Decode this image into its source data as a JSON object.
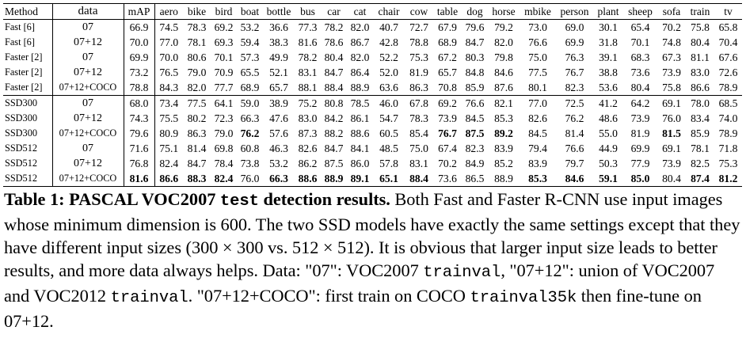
{
  "table": {
    "headers": [
      "Method",
      "data",
      "mAP",
      "aero",
      "bike",
      "bird",
      "boat",
      "bottle",
      "bus",
      "car",
      "cat",
      "chair",
      "cow",
      "table",
      "dog",
      "horse",
      "mbike",
      "person",
      "plant",
      "sheep",
      "sofa",
      "train",
      "tv"
    ],
    "rows": [
      {
        "method": "Fast [6]",
        "data": "07",
        "values": [
          "66.9",
          "74.5",
          "78.3",
          "69.2",
          "53.2",
          "36.6",
          "77.3",
          "78.2",
          "82.0",
          "40.7",
          "72.7",
          "67.9",
          "79.6",
          "79.2",
          "73.0",
          "69.0",
          "30.1",
          "65.4",
          "70.2",
          "75.8",
          "65.8"
        ],
        "bold": []
      },
      {
        "method": "Fast [6]",
        "data": "07+12",
        "values": [
          "70.0",
          "77.0",
          "78.1",
          "69.3",
          "59.4",
          "38.3",
          "81.6",
          "78.6",
          "86.7",
          "42.8",
          "78.8",
          "68.9",
          "84.7",
          "82.0",
          "76.6",
          "69.9",
          "31.8",
          "70.1",
          "74.8",
          "80.4",
          "70.4"
        ],
        "bold": []
      },
      {
        "method": "Faster [2]",
        "data": "07",
        "values": [
          "69.9",
          "70.0",
          "80.6",
          "70.1",
          "57.3",
          "49.9",
          "78.2",
          "80.4",
          "82.0",
          "52.2",
          "75.3",
          "67.2",
          "80.3",
          "79.8",
          "75.0",
          "76.3",
          "39.1",
          "68.3",
          "67.3",
          "81.1",
          "67.6"
        ],
        "bold": []
      },
      {
        "method": "Faster [2]",
        "data": "07+12",
        "values": [
          "73.2",
          "76.5",
          "79.0",
          "70.9",
          "65.5",
          "52.1",
          "83.1",
          "84.7",
          "86.4",
          "52.0",
          "81.9",
          "65.7",
          "84.8",
          "84.6",
          "77.5",
          "76.7",
          "38.8",
          "73.6",
          "73.9",
          "83.0",
          "72.6"
        ],
        "bold": []
      },
      {
        "method": "Faster [2]",
        "data": "07+12+COCO",
        "values": [
          "78.8",
          "84.3",
          "82.0",
          "77.7",
          "68.9",
          "65.7",
          "88.1",
          "88.4",
          "88.9",
          "63.6",
          "86.3",
          "70.8",
          "85.9",
          "87.6",
          "80.1",
          "82.3",
          "53.6",
          "80.4",
          "75.8",
          "86.6",
          "78.9"
        ],
        "bold": []
      },
      {
        "method": "SSD300",
        "data": "07",
        "values": [
          "68.0",
          "73.4",
          "77.5",
          "64.1",
          "59.0",
          "38.9",
          "75.2",
          "80.8",
          "78.5",
          "46.0",
          "67.8",
          "69.2",
          "76.6",
          "82.1",
          "77.0",
          "72.5",
          "41.2",
          "64.2",
          "69.1",
          "78.0",
          "68.5"
        ],
        "bold": []
      },
      {
        "method": "SSD300",
        "data": "07+12",
        "values": [
          "74.3",
          "75.5",
          "80.2",
          "72.3",
          "66.3",
          "47.6",
          "83.0",
          "84.2",
          "86.1",
          "54.7",
          "78.3",
          "73.9",
          "84.5",
          "85.3",
          "82.6",
          "76.2",
          "48.6",
          "73.9",
          "76.0",
          "83.4",
          "74.0"
        ],
        "bold": []
      },
      {
        "method": "SSD300",
        "data": "07+12+COCO",
        "values": [
          "79.6",
          "80.9",
          "86.3",
          "79.0",
          "76.2",
          "57.6",
          "87.3",
          "88.2",
          "88.6",
          "60.5",
          "85.4",
          "76.7",
          "87.5",
          "89.2",
          "84.5",
          "81.4",
          "55.0",
          "81.9",
          "81.5",
          "85.9",
          "78.9"
        ],
        "bold": [
          4,
          11,
          12,
          13,
          18
        ]
      },
      {
        "method": "SSD512",
        "data": "07",
        "values": [
          "71.6",
          "75.1",
          "81.4",
          "69.8",
          "60.8",
          "46.3",
          "82.6",
          "84.7",
          "84.1",
          "48.5",
          "75.0",
          "67.4",
          "82.3",
          "83.9",
          "79.4",
          "76.6",
          "44.9",
          "69.9",
          "69.1",
          "78.1",
          "71.8"
        ],
        "bold": []
      },
      {
        "method": "SSD512",
        "data": "07+12",
        "values": [
          "76.8",
          "82.4",
          "84.7",
          "78.4",
          "73.8",
          "53.2",
          "86.2",
          "87.5",
          "86.0",
          "57.8",
          "83.1",
          "70.2",
          "84.9",
          "85.2",
          "83.9",
          "79.7",
          "50.3",
          "77.9",
          "73.9",
          "82.5",
          "75.3"
        ],
        "bold": []
      },
      {
        "method": "SSD512",
        "data": "07+12+COCO",
        "values": [
          "81.6",
          "86.6",
          "88.3",
          "82.4",
          "76.0",
          "66.3",
          "88.6",
          "88.9",
          "89.1",
          "65.1",
          "88.4",
          "73.6",
          "86.5",
          "88.9",
          "85.3",
          "84.6",
          "59.1",
          "85.0",
          "80.4",
          "87.4",
          "81.2"
        ],
        "bold": [
          0,
          1,
          2,
          3,
          5,
          6,
          7,
          8,
          9,
          10,
          14,
          15,
          16,
          17,
          19,
          20
        ]
      }
    ]
  },
  "caption": {
    "label": "Table 1:",
    "title_pre": "PASCAL VOC2007 ",
    "title_code": "test",
    "title_post": " detection results.",
    "t1": " Both Fast and Faster R-CNN use input images whose minimum dimension is 600. The two SSD models have exactly the same settings except that they have different input sizes (300 × 300 vs. 512 × 512). It is obvious that larger input size leads to better results, and more data always helps. Data: \"07\": VOC2007 ",
    "code1": "trainval",
    "t2": ", \"07+12\": union of VOC2007 and VOC2012 ",
    "code2": "trainval",
    "t3": ". \"07+12+COCO\": first train on COCO ",
    "code3": "trainval35k",
    "t4": " then fine-tune on 07+12."
  }
}
